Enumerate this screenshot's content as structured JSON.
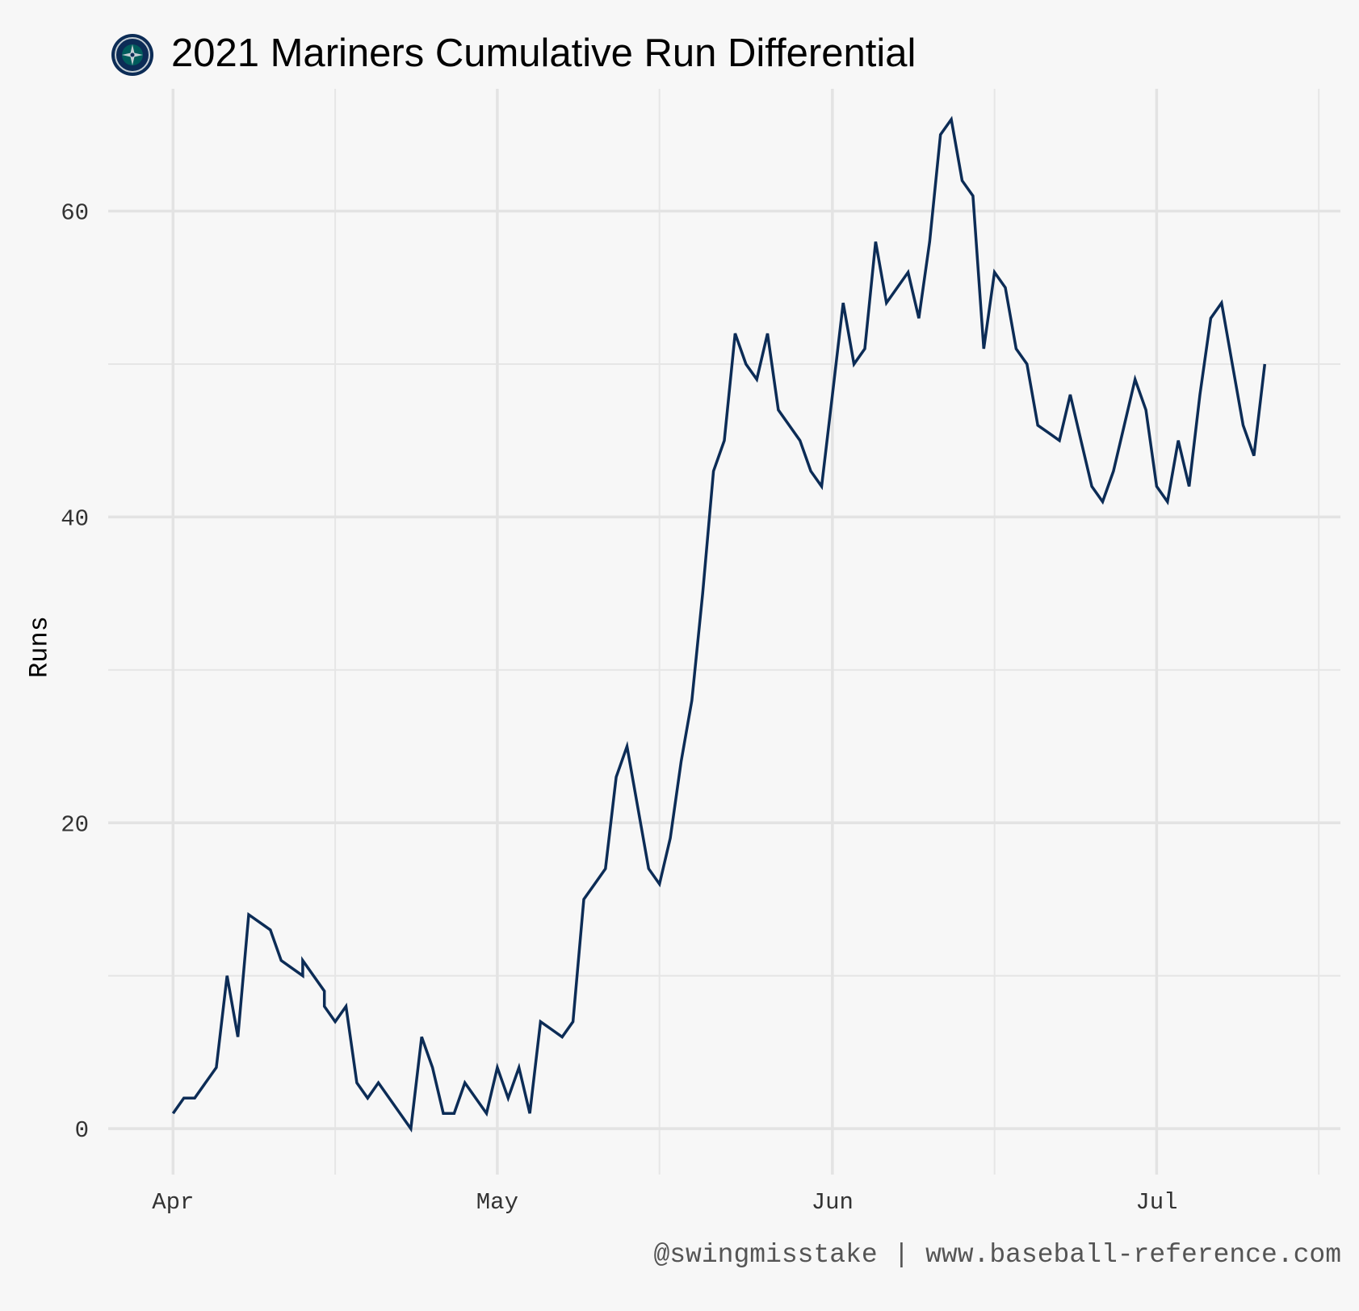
{
  "chart_data": {
    "type": "line",
    "title": "2021 Mariners Cumulative Run Differential",
    "xlabel": "",
    "ylabel": "Runs",
    "caption": "@swingmisstake | www.baseball-reference.com",
    "x_tick_labels": [
      "Apr",
      "May",
      "Jun",
      "Jul"
    ],
    "y_tick_labels": [
      "0",
      "20",
      "40",
      "60"
    ],
    "ylim": [
      -3,
      68
    ],
    "grid": true,
    "series": [
      {
        "color": "#0c2c56",
        "x": [
          "2021-04-01",
          "2021-04-02",
          "2021-04-03",
          "2021-04-04",
          "2021-04-05",
          "2021-04-06",
          "2021-04-07",
          "2021-04-08",
          "2021-04-09",
          "2021-04-10",
          "2021-04-11",
          "2021-04-12",
          "2021-04-13",
          "2021-04-13",
          "2021-04-14",
          "2021-04-15",
          "2021-04-15",
          "2021-04-16",
          "2021-04-17",
          "2021-04-18",
          "2021-04-19",
          "2021-04-20",
          "2021-04-21",
          "2021-04-22",
          "2021-04-23",
          "2021-04-24",
          "2021-04-25",
          "2021-04-26",
          "2021-04-27",
          "2021-04-28",
          "2021-04-29",
          "2021-04-30",
          "2021-05-01",
          "2021-05-02",
          "2021-05-03",
          "2021-05-04",
          "2021-05-05",
          "2021-05-06",
          "2021-05-07",
          "2021-05-08",
          "2021-05-09",
          "2021-05-10",
          "2021-05-11",
          "2021-05-12",
          "2021-05-13",
          "2021-05-14",
          "2021-05-15",
          "2021-05-16",
          "2021-05-17",
          "2021-05-18",
          "2021-05-19",
          "2021-05-20",
          "2021-05-21",
          "2021-05-22",
          "2021-05-23",
          "2021-05-24",
          "2021-05-25",
          "2021-05-26",
          "2021-05-27",
          "2021-05-28",
          "2021-05-29",
          "2021-05-30",
          "2021-05-31",
          "2021-06-01",
          "2021-06-02",
          "2021-06-03",
          "2021-06-04",
          "2021-06-05",
          "2021-06-06",
          "2021-06-07",
          "2021-06-08",
          "2021-06-09",
          "2021-06-10",
          "2021-06-11",
          "2021-06-12",
          "2021-06-13",
          "2021-06-14",
          "2021-06-15",
          "2021-06-16",
          "2021-06-17",
          "2021-06-18",
          "2021-06-19",
          "2021-06-20",
          "2021-06-21",
          "2021-06-22",
          "2021-06-23",
          "2021-06-24",
          "2021-06-25",
          "2021-06-26",
          "2021-06-27",
          "2021-06-28",
          "2021-06-29",
          "2021-06-30",
          "2021-07-01",
          "2021-07-02",
          "2021-07-03",
          "2021-07-04",
          "2021-07-05",
          "2021-07-06",
          "2021-07-07",
          "2021-07-08",
          "2021-07-09",
          "2021-07-10",
          "2021-07-11"
        ],
        "values": [
          1,
          2,
          2,
          3,
          4,
          10,
          6,
          14,
          13.5,
          13,
          11,
          10.5,
          10,
          11,
          10,
          9,
          8,
          7,
          8,
          3,
          2,
          3,
          2,
          1,
          0,
          6,
          4,
          1,
          1,
          3,
          2,
          1,
          4,
          2,
          4,
          1,
          7,
          6.5,
          6,
          7,
          15,
          16,
          17,
          23,
          25,
          21,
          17,
          16,
          19,
          24,
          28,
          35,
          43,
          45,
          52,
          50,
          49,
          52,
          47,
          46,
          45,
          43,
          42,
          48,
          54,
          50,
          51,
          58,
          54,
          55,
          56,
          53,
          58,
          65,
          66,
          62,
          61,
          51,
          56,
          55,
          51,
          50,
          46,
          45.5,
          45,
          48,
          45,
          42,
          41,
          43,
          46,
          49,
          47,
          42,
          41,
          45,
          42,
          48,
          53,
          54,
          50,
          46,
          44,
          50
        ]
      }
    ]
  }
}
